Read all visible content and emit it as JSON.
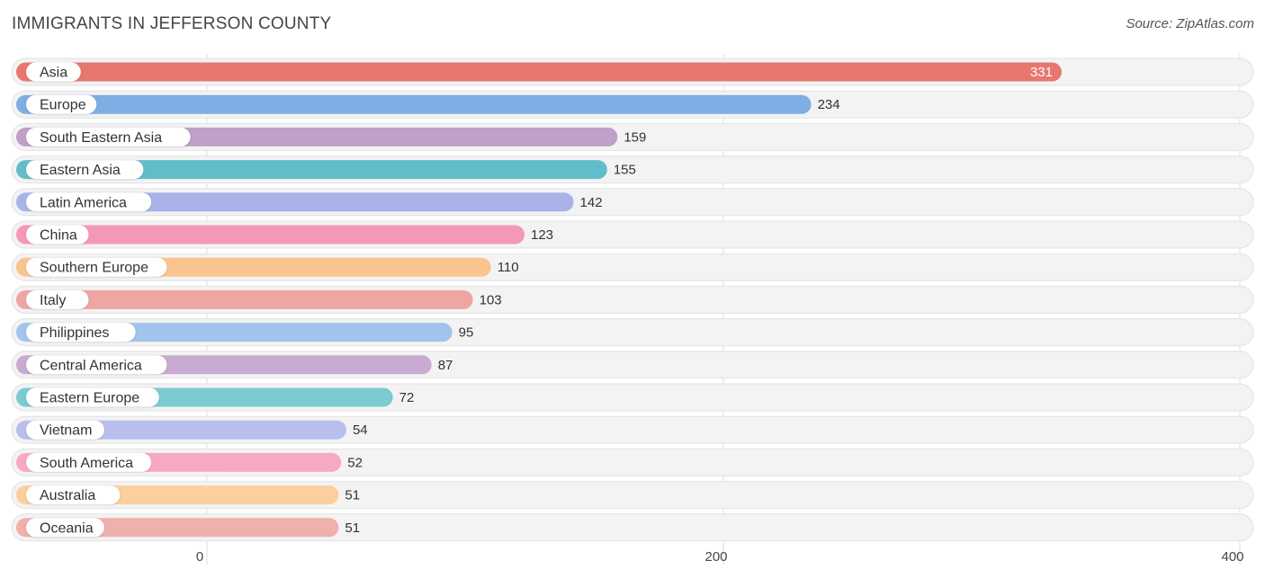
{
  "header": {
    "title": "IMMIGRANTS IN JEFFERSON COUNTY",
    "source": "Source: ZipAtlas.com"
  },
  "chart_data": {
    "type": "bar",
    "orientation": "horizontal",
    "categories": [
      "Asia",
      "Europe",
      "South Eastern Asia",
      "Eastern Asia",
      "Latin America",
      "China",
      "Southern Europe",
      "Italy",
      "Philippines",
      "Central America",
      "Eastern Europe",
      "Vietnam",
      "South America",
      "Australia",
      "Oceania"
    ],
    "values": [
      331,
      234,
      159,
      155,
      142,
      123,
      110,
      103,
      95,
      87,
      72,
      54,
      52,
      51,
      51
    ],
    "colors": [
      "#e8776f",
      "#7eaee3",
      "#c09fc8",
      "#61bdc9",
      "#a9b3e8",
      "#f598b8",
      "#fac48f",
      "#eea6a2",
      "#a2c3eb",
      "#c8abd0",
      "#7ccad2",
      "#b8bfed",
      "#f7a8c4",
      "#fbcf9e",
      "#f0b0ab"
    ],
    "xlim": [
      0,
      400
    ],
    "ticks": [
      0,
      200,
      400
    ],
    "tick_labels": [
      "0",
      "200",
      "400"
    ],
    "grid": true
  }
}
